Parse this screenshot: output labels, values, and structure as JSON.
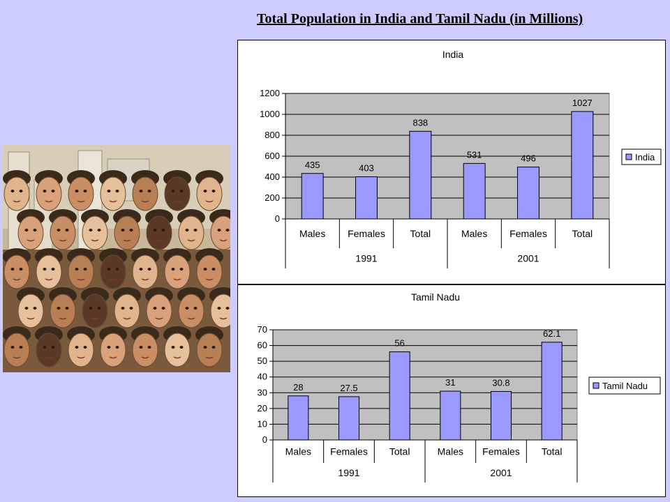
{
  "slide": {
    "title": "Total Population in India and Tamil Nadu (in Millions)"
  },
  "colors": {
    "background": "#ccccff",
    "plot_area": "#c0c0c0",
    "bar": "#9999ff",
    "bar_stroke": "#000000"
  },
  "chart_data": [
    {
      "type": "bar",
      "title": "India",
      "categories": [
        "Males",
        "Females",
        "Total",
        "Males",
        "Females",
        "Total"
      ],
      "groups": [
        {
          "label": "1991",
          "span": 3
        },
        {
          "label": "2001",
          "span": 3
        }
      ],
      "series": [
        {
          "name": "India",
          "values": [
            435,
            403,
            838,
            531,
            496,
            1027
          ]
        }
      ],
      "data_labels": [
        "435",
        "403",
        "838",
        "531",
        "496",
        "1027"
      ],
      "ylim": [
        0,
        1200
      ],
      "yticks": [
        "0",
        "200",
        "400",
        "600",
        "800",
        "1000",
        "1200"
      ],
      "ytick_values": [
        0,
        200,
        400,
        600,
        800,
        1000,
        1200
      ],
      "grid": true,
      "legend_position": "right"
    },
    {
      "type": "bar",
      "title": "Tamil Nadu",
      "categories": [
        "Males",
        "Females",
        "Total",
        "Males",
        "Females",
        "Total"
      ],
      "groups": [
        {
          "label": "1991",
          "span": 3
        },
        {
          "label": "2001",
          "span": 3
        }
      ],
      "series": [
        {
          "name": "Tamil Nadu",
          "values": [
            28,
            27.5,
            56,
            31,
            30.8,
            62.1
          ]
        }
      ],
      "data_labels": [
        "28",
        "27.5",
        "56",
        "31",
        "30.8",
        "62.1"
      ],
      "ylim": [
        0,
        70
      ],
      "yticks": [
        "0",
        "10",
        "20",
        "30",
        "40",
        "50",
        "60",
        "70"
      ],
      "ytick_values": [
        0,
        10,
        20,
        30,
        40,
        50,
        60,
        70
      ],
      "grid": true,
      "legend_position": "right"
    }
  ]
}
